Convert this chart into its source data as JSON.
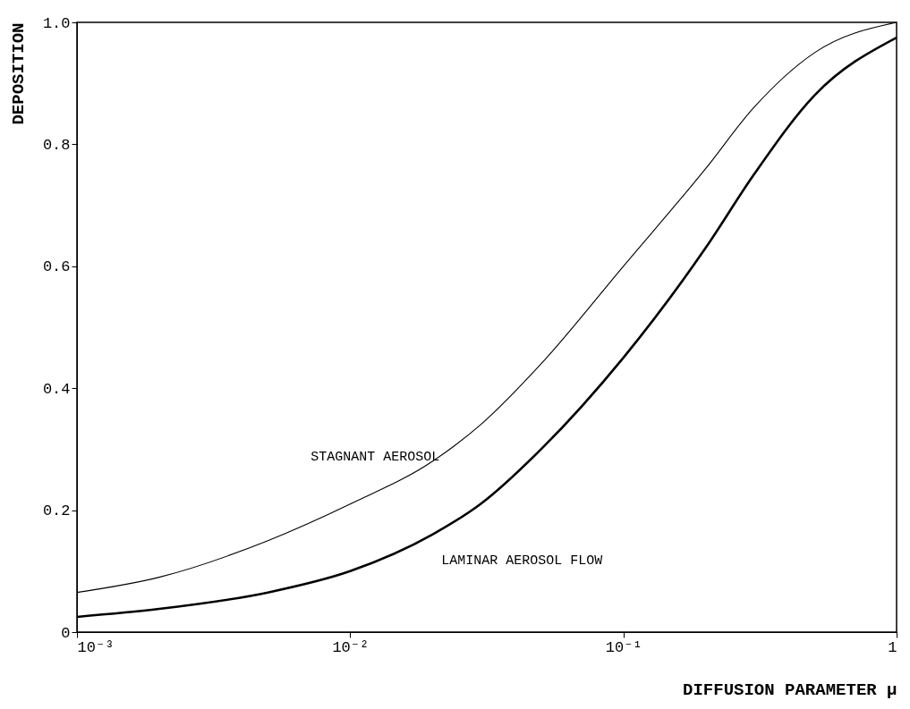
{
  "chart_data": {
    "type": "line",
    "xlabel": "DIFFUSION PARAMETER   μ",
    "ylabel": "DEPOSITION",
    "x": [
      0.001,
      0.002,
      0.005,
      0.01,
      0.02,
      0.03,
      0.05,
      0.1,
      0.2,
      0.3,
      0.5,
      1
    ],
    "series": [
      {
        "name": "STAGNANT AEROSOL",
        "color": "#000000",
        "values": [
          0.065,
          0.09,
          0.15,
          0.21,
          0.28,
          0.34,
          0.44,
          0.6,
          0.76,
          0.86,
          0.95,
          1.0
        ]
      },
      {
        "name": "LAMINAR AEROSOL FLOW",
        "color": "#000000",
        "values": [
          0.025,
          0.038,
          0.065,
          0.1,
          0.16,
          0.21,
          0.3,
          0.45,
          0.63,
          0.75,
          0.88,
          0.975
        ]
      }
    ],
    "log": "x",
    "xlim": [
      0.001,
      1
    ],
    "ylim": [
      0,
      1
    ],
    "xticks": [
      {
        "value": 0.001,
        "label": "10⁻³"
      },
      {
        "value": 0.01,
        "label": "10⁻²"
      },
      {
        "value": 0.1,
        "label": "10⁻¹"
      },
      1
    ],
    "yticks": [
      0,
      0.2,
      0.4,
      0.6,
      0.8,
      {
        "value": 1,
        "label": "1.0"
      }
    ],
    "grid": false,
    "legend": false,
    "marker": "none",
    "line_style": "solid"
  }
}
